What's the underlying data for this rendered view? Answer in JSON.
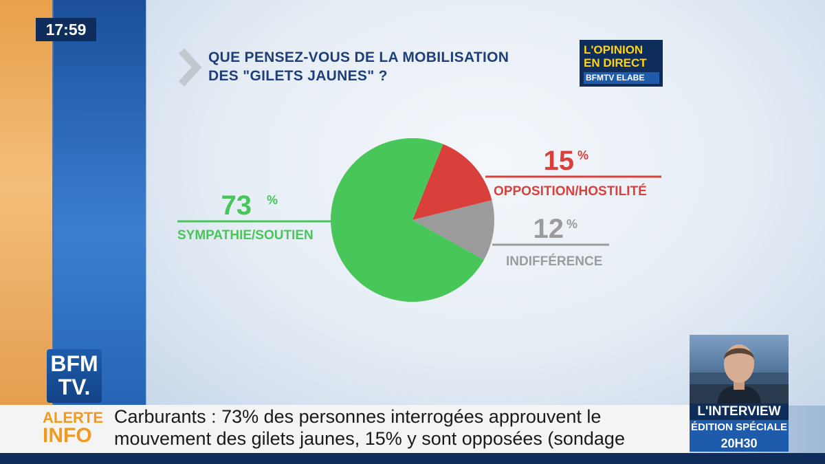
{
  "clock": "17:59",
  "question": {
    "line1": "QUE PENSEZ-VOUS DE LA MOBILISATION",
    "line2": "DES \"GILETS JAUNES\" ?"
  },
  "opinion_logo": {
    "line1": "L'OPINION",
    "line2": "EN DIRECT",
    "brand": "BFMTV ELABE"
  },
  "chart_data": {
    "type": "pie",
    "title": "QUE PENSEZ-VOUS DE LA MOBILISATION DES \"GILETS JAUNES\" ?",
    "slices": [
      {
        "label": "SYMPATHIE/SOUTIEN",
        "value": 73,
        "display": "73",
        "unit": "%",
        "color": "#48c65a"
      },
      {
        "label": "OPPOSITION/HOSTILITÉ",
        "value": 15,
        "display": "15",
        "unit": "%",
        "color": "#d9403c"
      },
      {
        "label": "INDIFFÉRENCE",
        "value": 12,
        "display": "12",
        "unit": "%",
        "color": "#9b9b9b"
      }
    ]
  },
  "channel_logo": {
    "line1": "BFM",
    "line2": "TV."
  },
  "ticker": {
    "tag_line1": "ALERTE",
    "tag_line2": "INFO",
    "line1": "Carburants : 73% des personnes interrogées approuvent le",
    "line2": "mouvement des gilets jaunes, 15% y sont opposées (sondage"
  },
  "interview": {
    "label1": "L'INTERVIEW",
    "label2": "ÉDITION SPÉCIALE",
    "label3": "20H30"
  }
}
